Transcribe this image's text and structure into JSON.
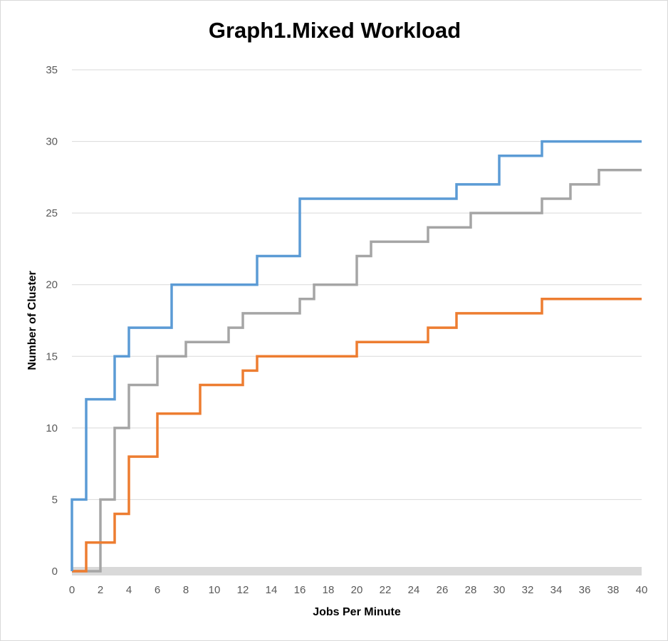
{
  "chart_data": {
    "type": "line",
    "step": true,
    "title": "Graph1.Mixed Workload",
    "xlabel": "Jobs Per Minute",
    "ylabel": "Number of Cluster",
    "xlim": [
      0,
      40
    ],
    "ylim": [
      0,
      35
    ],
    "x_ticks": [
      0,
      2,
      4,
      6,
      8,
      10,
      12,
      14,
      16,
      18,
      20,
      22,
      24,
      26,
      28,
      30,
      32,
      34,
      36,
      38,
      40
    ],
    "x_tick_labels": [
      "0",
      "2",
      "4",
      "6",
      "8",
      "10",
      "12",
      "14",
      "16",
      "18",
      "20",
      "22",
      "24",
      "26",
      "28",
      "30",
      "32",
      "34",
      "36",
      "38",
      "40"
    ],
    "y_ticks": [
      0,
      5,
      10,
      15,
      20,
      25,
      30,
      35
    ],
    "y_tick_labels": [
      "0",
      "5",
      "10",
      "15",
      "20",
      "25",
      "30",
      "35"
    ],
    "grid": "horizontal",
    "legend": "none",
    "series": [
      {
        "color": "#5b9bd5",
        "points": [
          [
            0,
            0
          ],
          [
            0,
            5
          ],
          [
            1,
            5
          ],
          [
            1,
            12
          ],
          [
            3,
            12
          ],
          [
            3,
            15
          ],
          [
            4,
            15
          ],
          [
            4,
            17
          ],
          [
            7,
            17
          ],
          [
            7,
            20
          ],
          [
            13,
            20
          ],
          [
            13,
            22
          ],
          [
            16,
            22
          ],
          [
            16,
            26
          ],
          [
            27,
            26
          ],
          [
            27,
            27
          ],
          [
            30,
            27
          ],
          [
            30,
            29
          ],
          [
            33,
            29
          ],
          [
            33,
            30
          ],
          [
            40,
            30
          ]
        ]
      },
      {
        "color": "#ed7d31",
        "points": [
          [
            0,
            0
          ],
          [
            1,
            0
          ],
          [
            1,
            2
          ],
          [
            3,
            2
          ],
          [
            3,
            4
          ],
          [
            4,
            4
          ],
          [
            4,
            8
          ],
          [
            6,
            8
          ],
          [
            6,
            11
          ],
          [
            9,
            11
          ],
          [
            9,
            13
          ],
          [
            12,
            13
          ],
          [
            12,
            14
          ],
          [
            13,
            14
          ],
          [
            13,
            15
          ],
          [
            20,
            15
          ],
          [
            20,
            16
          ],
          [
            25,
            16
          ],
          [
            25,
            17
          ],
          [
            27,
            17
          ],
          [
            27,
            18
          ],
          [
            33,
            18
          ],
          [
            33,
            19
          ],
          [
            40,
            19
          ]
        ]
      },
      {
        "color": "#a5a5a5",
        "points": [
          [
            0,
            0
          ],
          [
            2,
            0
          ],
          [
            2,
            5
          ],
          [
            3,
            5
          ],
          [
            3,
            10
          ],
          [
            4,
            10
          ],
          [
            4,
            13
          ],
          [
            6,
            13
          ],
          [
            6,
            15
          ],
          [
            8,
            15
          ],
          [
            8,
            16
          ],
          [
            11,
            16
          ],
          [
            11,
            17
          ],
          [
            12,
            17
          ],
          [
            12,
            18
          ],
          [
            16,
            18
          ],
          [
            16,
            19
          ],
          [
            17,
            19
          ],
          [
            17,
            20
          ],
          [
            20,
            20
          ],
          [
            20,
            22
          ],
          [
            21,
            22
          ],
          [
            21,
            23
          ],
          [
            25,
            23
          ],
          [
            25,
            24
          ],
          [
            28,
            24
          ],
          [
            28,
            25
          ],
          [
            33,
            25
          ],
          [
            33,
            26
          ],
          [
            35,
            26
          ],
          [
            35,
            27
          ],
          [
            37,
            27
          ],
          [
            37,
            28
          ],
          [
            40,
            28
          ]
        ]
      }
    ]
  }
}
